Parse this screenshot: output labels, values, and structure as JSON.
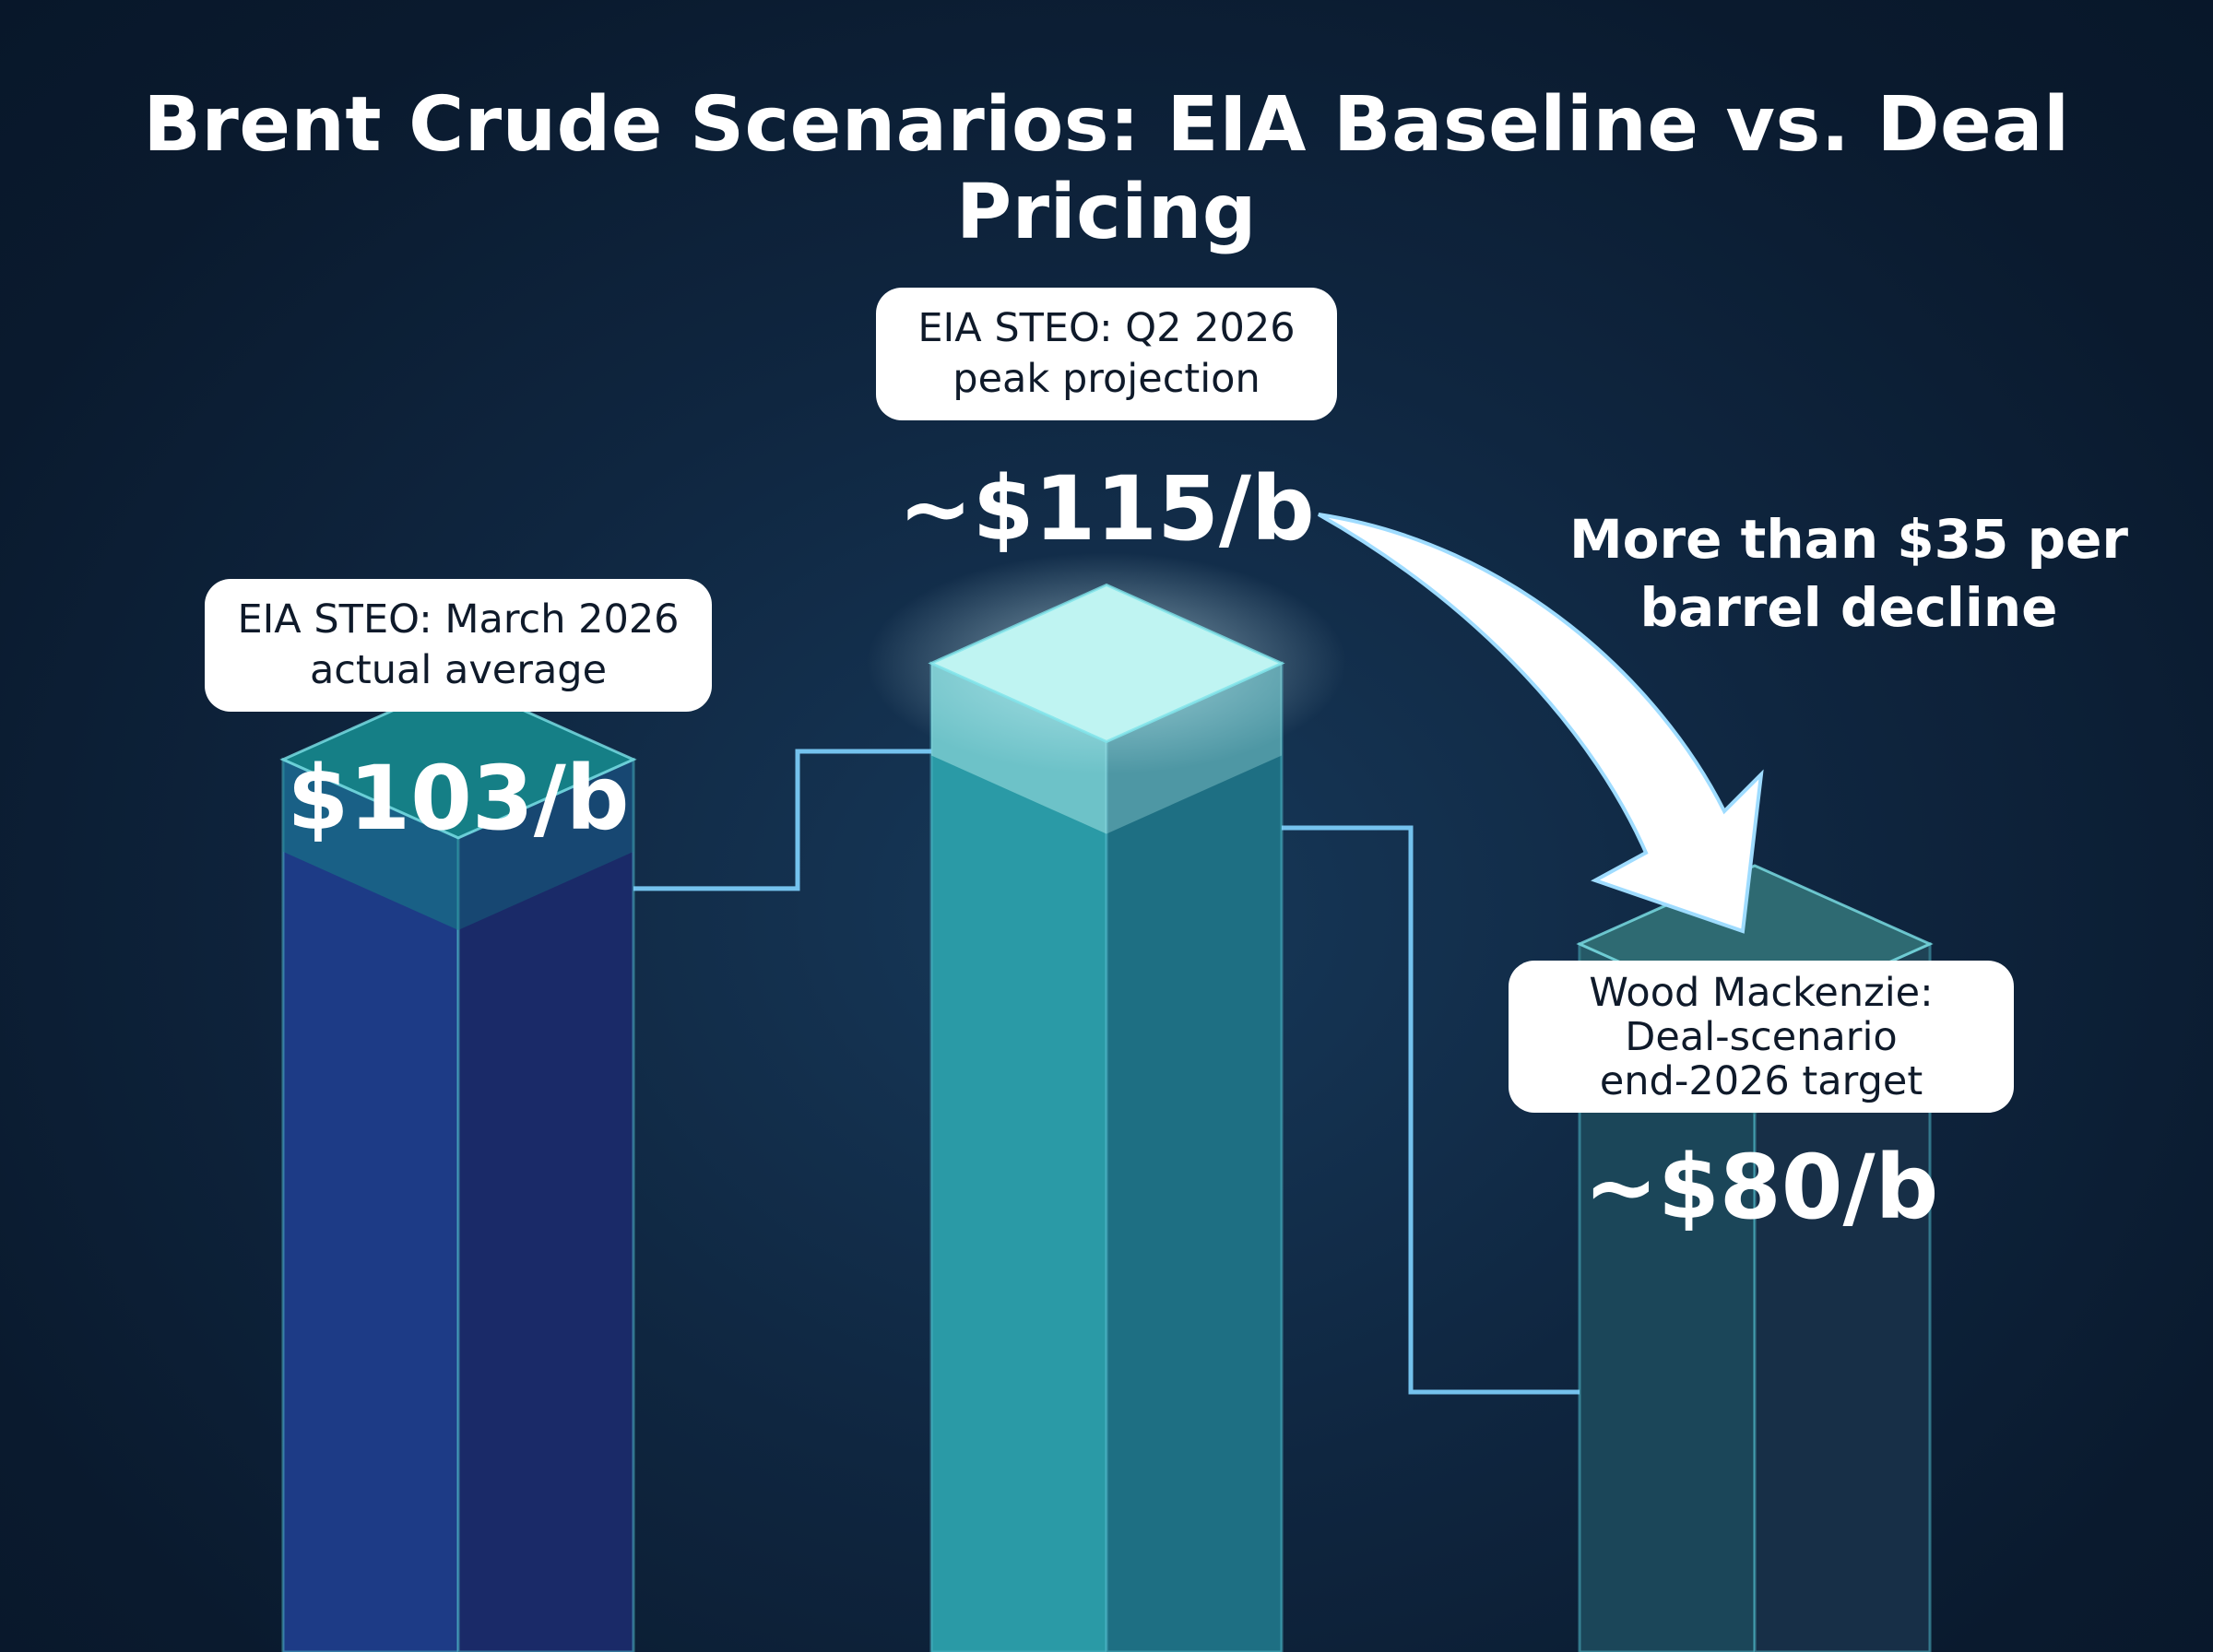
{
  "chart_data": {
    "type": "bar",
    "title": "Brent Crude Scenarios: EIA Baseline vs. Deal Pricing",
    "categories": [
      "EIA STEO: March 2026 actual average",
      "EIA STEO: Q2 2026 peak projection",
      "Wood Mackenzie: Deal-scenario end-2026 target"
    ],
    "values": [
      103,
      115,
      80
    ],
    "value_labels": [
      "$103/b",
      "~$115/b",
      "~$80/b"
    ],
    "bars": [
      {
        "label_lines": [
          "EIA STEO: March 2026",
          "actual average"
        ],
        "value_label": "$103/b"
      },
      {
        "label_lines": [
          "EIA STEO: Q2 2026",
          "peak projection"
        ],
        "value_label": "~$115/b"
      },
      {
        "label_lines": [
          "Wood Mackenzie:",
          "Deal-scenario",
          "end-2026 target"
        ],
        "value_label": "~$80/b"
      }
    ],
    "annotation": {
      "lines": [
        "More than $35 per",
        "barrel decline"
      ],
      "from": "~$115/b",
      "to": "~$80/b"
    },
    "grid": false,
    "legend": "none",
    "colors": {
      "bar_1_front": "#1d3b86",
      "bar_1_side": "#1a2a68",
      "bar_1_top": "#157f86",
      "bar_2_front": "#2a9aa6",
      "bar_2_side": "#1e6f83",
      "bar_2_top": "#bff4f2",
      "bar_3_front": "#1b4659",
      "bar_3_side": "#172f47",
      "bar_3_top": "#2e6a72",
      "connector": "#7fd3ff",
      "arrow": "#ffffff"
    }
  }
}
